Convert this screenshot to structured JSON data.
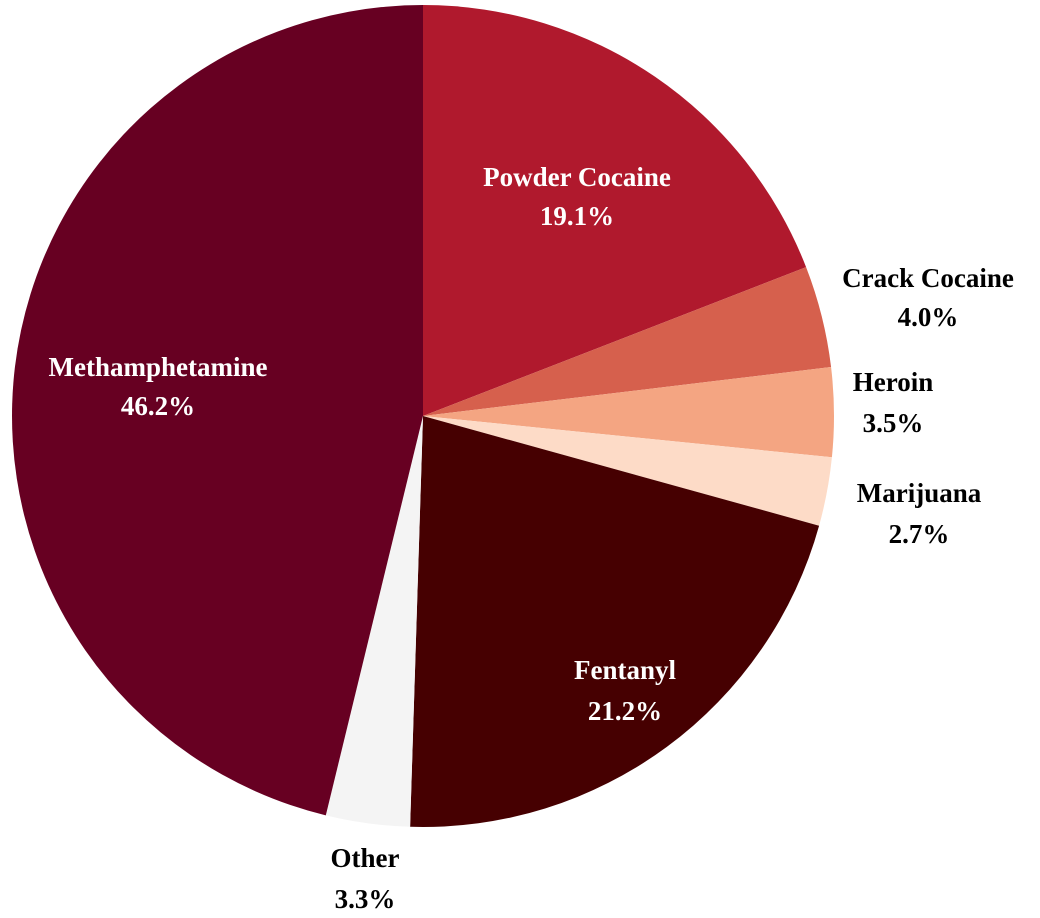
{
  "chart_data": {
    "type": "pie",
    "title": "",
    "start_angle_deg": 0,
    "direction": "clockwise",
    "slices": [
      {
        "name": "Powder Cocaine",
        "value": 19.1,
        "value_label": "19.1%",
        "color": "#b0192d",
        "label_color": "#ffffff"
      },
      {
        "name": "Crack Cocaine",
        "value": 4.0,
        "value_label": "4.0%",
        "color": "#d6604d",
        "label_color": "#000000"
      },
      {
        "name": "Heroin",
        "value": 3.5,
        "value_label": "3.5%",
        "color": "#f4a582",
        "label_color": "#000000"
      },
      {
        "name": "Marijuana",
        "value": 2.7,
        "value_label": "2.7%",
        "color": "#fddbc7",
        "label_color": "#000000"
      },
      {
        "name": "Fentanyl",
        "value": 21.2,
        "value_label": "21.2%",
        "color": "#460001",
        "label_color": "#ffffff"
      },
      {
        "name": "Other",
        "value": 3.3,
        "value_label": "3.3%",
        "color": "#f4f4f4",
        "label_color": "#000000"
      },
      {
        "name": "Methamphetamine",
        "value": 46.2,
        "value_label": "46.2%",
        "color": "#670022",
        "label_color": "#ffffff"
      }
    ]
  }
}
